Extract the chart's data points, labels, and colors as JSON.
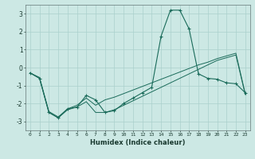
{
  "xlabel": "Humidex (Indice chaleur)",
  "bg_color": "#cce8e4",
  "grid_color": "#aad0cc",
  "line_color": "#1a6b5a",
  "x_values": [
    0,
    1,
    2,
    3,
    4,
    5,
    6,
    7,
    8,
    9,
    10,
    11,
    12,
    13,
    14,
    15,
    16,
    17,
    18,
    19,
    20,
    21,
    22,
    23
  ],
  "series1": [
    -0.3,
    -0.6,
    -2.5,
    -2.8,
    -2.3,
    -2.2,
    -1.55,
    -1.8,
    -2.5,
    -2.4,
    -2.0,
    -1.7,
    -1.4,
    -1.1,
    1.75,
    3.2,
    3.2,
    2.15,
    -0.35,
    -0.6,
    -0.65,
    -0.85,
    -0.9,
    -1.4
  ],
  "series2": [
    -0.3,
    -0.6,
    -2.5,
    -2.8,
    -2.35,
    -2.2,
    -1.9,
    -2.5,
    -2.5,
    -2.35,
    -2.1,
    -1.85,
    -1.6,
    -1.35,
    -1.1,
    -0.85,
    -0.6,
    -0.35,
    -0.1,
    0.15,
    0.4,
    0.55,
    0.7,
    -1.5
  ],
  "series3": [
    -0.3,
    -0.55,
    -2.45,
    -2.75,
    -2.3,
    -2.1,
    -1.7,
    -2.1,
    -1.8,
    -1.65,
    -1.45,
    -1.25,
    -1.05,
    -0.85,
    -0.65,
    -0.45,
    -0.25,
    -0.05,
    0.15,
    0.3,
    0.5,
    0.65,
    0.8,
    -1.45
  ],
  "ylim": [
    -3.5,
    3.5
  ],
  "xlim": [
    -0.5,
    23.5
  ],
  "yticks": [
    -3,
    -2,
    -1,
    0,
    1,
    2,
    3
  ]
}
